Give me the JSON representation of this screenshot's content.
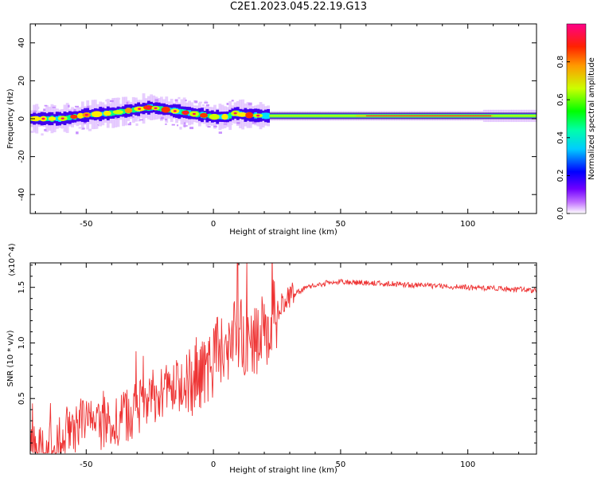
{
  "title": "C2E1.2023.045.22.19.G13",
  "chart_data": [
    {
      "type": "heatmap",
      "xlabel": "Height of straight line (km)",
      "ylabel": "Frequency (Hz)",
      "xlim": [
        -72,
        127
      ],
      "ylim": [
        -50,
        50
      ],
      "x_ticks": [
        -50,
        0,
        50,
        100
      ],
      "y_ticks": [
        -40,
        -20,
        0,
        20,
        40
      ],
      "ridge": [
        {
          "x": -70,
          "f": 0
        },
        {
          "x": -60,
          "f": 0
        },
        {
          "x": -50,
          "f": 2
        },
        {
          "x": -40,
          "f": 3
        },
        {
          "x": -30,
          "f": 5
        },
        {
          "x": -25,
          "f": 6
        },
        {
          "x": -20,
          "f": 5
        },
        {
          "x": -15,
          "f": 4
        },
        {
          "x": -10,
          "f": 3
        },
        {
          "x": -5,
          "f": 2
        },
        {
          "x": 0,
          "f": 1
        },
        {
          "x": 5,
          "f": 1
        },
        {
          "x": 8,
          "f": 3
        },
        {
          "x": 12,
          "f": 2
        },
        {
          "x": 20,
          "f": 1.5
        },
        {
          "x": 30,
          "f": 1.5
        },
        {
          "x": 127,
          "f": 1.5
        }
      ],
      "colorbar": {
        "label": "Normalized spectral amplitude",
        "range": [
          0,
          1
        ],
        "ticks": [
          0.0,
          0.2,
          0.4,
          0.6,
          0.8
        ],
        "tick_labels": [
          "0.0",
          "0.2",
          "0.4",
          "0.6",
          "0.8"
        ]
      }
    },
    {
      "type": "line",
      "xlabel": "Height of straight line (km)",
      "ylabel": "SNR (10 * v/v)",
      "scale_label": "(x10^4)",
      "xlim": [
        -72,
        127
      ],
      "ylim": [
        0,
        1.72
      ],
      "x_ticks": [
        -50,
        0,
        50,
        100
      ],
      "y_ticks": [
        0.5,
        1.0,
        1.5
      ],
      "y_tick_labels": [
        "0.5",
        "1.0",
        "1.5"
      ],
      "series": [
        {
          "color": "#ee3333",
          "x": [
            -72,
            -68,
            -64,
            -60,
            -55,
            -50,
            -45,
            -40,
            -35,
            -30,
            -25,
            -20,
            -15,
            -10,
            -5,
            0,
            5,
            10,
            15,
            20,
            25,
            30,
            35,
            40,
            45,
            50,
            60,
            70,
            80,
            90,
            100,
            110,
            120,
            127
          ],
          "y": [
            0.1,
            0.05,
            0.06,
            0.12,
            0.25,
            0.3,
            0.28,
            0.3,
            0.35,
            0.4,
            0.5,
            0.55,
            0.6,
            0.65,
            0.75,
            0.85,
            0.95,
            1.1,
            1.0,
            1.1,
            1.3,
            1.42,
            1.48,
            1.52,
            1.54,
            1.55,
            1.54,
            1.53,
            1.52,
            1.51,
            1.5,
            1.49,
            1.48,
            1.47
          ]
        }
      ]
    }
  ]
}
